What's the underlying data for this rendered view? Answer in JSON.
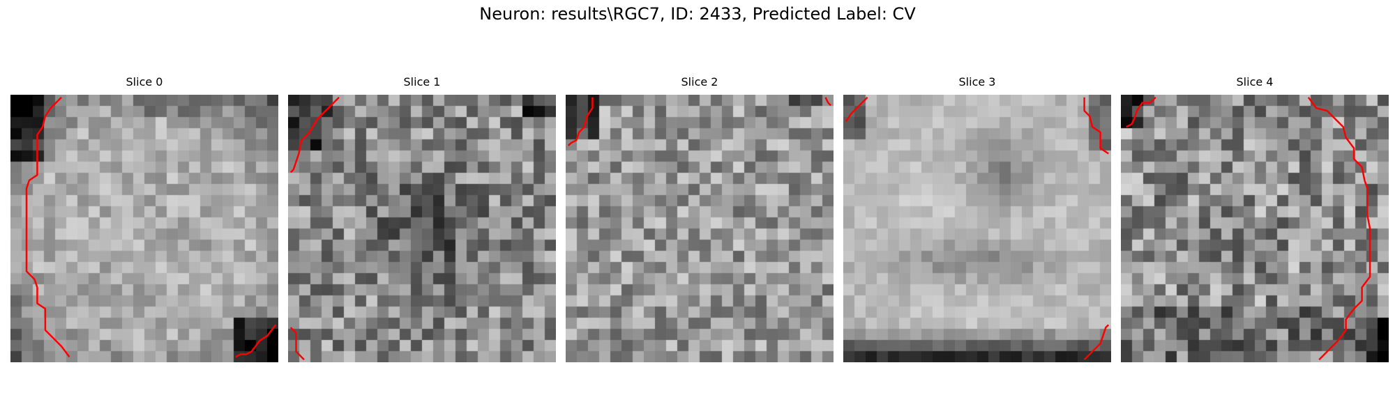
{
  "figure": {
    "suptitle": "Neuron: results\\RGC7, ID: 2433, Predicted Label: CV"
  },
  "colors": {
    "contour": "#ff0000",
    "background": "#ffffff",
    "text": "#000000"
  },
  "panels": [
    {
      "title": "Slice 0",
      "seed": 11,
      "pattern": "cell_bright",
      "contours": [
        [
          [
            0.19,
            0.01
          ],
          [
            0.15,
            0.05
          ],
          [
            0.13,
            0.08
          ],
          [
            0.12,
            0.12
          ],
          [
            0.1,
            0.15
          ],
          [
            0.1,
            0.22
          ],
          [
            0.1,
            0.3
          ],
          [
            0.07,
            0.32
          ],
          [
            0.06,
            0.35
          ],
          [
            0.06,
            0.5
          ],
          [
            0.06,
            0.66
          ],
          [
            0.09,
            0.69
          ],
          [
            0.1,
            0.72
          ],
          [
            0.1,
            0.78
          ],
          [
            0.13,
            0.8
          ],
          [
            0.13,
            0.88
          ],
          [
            0.16,
            0.91
          ],
          [
            0.19,
            0.94
          ],
          [
            0.22,
            0.98
          ]
        ],
        [
          [
            0.84,
            0.98
          ],
          [
            0.86,
            0.97
          ],
          [
            0.88,
            0.97
          ],
          [
            0.9,
            0.96
          ],
          [
            0.93,
            0.92
          ],
          [
            0.96,
            0.9
          ],
          [
            0.99,
            0.86
          ]
        ]
      ]
    },
    {
      "title": "Slice 1",
      "seed": 23,
      "pattern": "noisy_dark_center",
      "contours": [
        [
          [
            0.19,
            0.01
          ],
          [
            0.15,
            0.05
          ],
          [
            0.11,
            0.09
          ],
          [
            0.08,
            0.14
          ],
          [
            0.05,
            0.17
          ],
          [
            0.04,
            0.22
          ],
          [
            0.02,
            0.28
          ],
          [
            0.01,
            0.29
          ]
        ],
        [
          [
            0.01,
            0.87
          ],
          [
            0.03,
            0.89
          ],
          [
            0.03,
            0.96
          ],
          [
            0.06,
            0.99
          ]
        ]
      ]
    },
    {
      "title": "Slice 2",
      "seed": 37,
      "pattern": "noisy_flat",
      "contours": [
        [
          [
            0.1,
            0.01
          ],
          [
            0.1,
            0.05
          ],
          [
            0.08,
            0.08
          ],
          [
            0.07,
            0.12
          ],
          [
            0.05,
            0.14
          ],
          [
            0.04,
            0.17
          ],
          [
            0.02,
            0.18
          ],
          [
            0.01,
            0.19
          ]
        ],
        [
          [
            0.97,
            0.01
          ],
          [
            0.98,
            0.03
          ],
          [
            0.99,
            0.04
          ]
        ]
      ]
    },
    {
      "title": "Slice 3",
      "seed": 41,
      "pattern": "bright_blob_dark_bottom",
      "contours": [
        [
          [
            0.09,
            0.01
          ],
          [
            0.06,
            0.04
          ],
          [
            0.03,
            0.07
          ],
          [
            0.01,
            0.1
          ]
        ],
        [
          [
            0.9,
            0.01
          ],
          [
            0.9,
            0.06
          ],
          [
            0.92,
            0.08
          ],
          [
            0.93,
            0.12
          ],
          [
            0.96,
            0.14
          ],
          [
            0.96,
            0.2
          ],
          [
            0.99,
            0.22
          ]
        ],
        [
          [
            0.9,
            0.99
          ],
          [
            0.93,
            0.96
          ],
          [
            0.96,
            0.93
          ],
          [
            0.97,
            0.9
          ],
          [
            0.98,
            0.87
          ],
          [
            0.99,
            0.86
          ]
        ]
      ]
    },
    {
      "title": "Slice 4",
      "seed": 53,
      "pattern": "noisy_dark_corners",
      "contours": [
        [
          [
            0.13,
            0.01
          ],
          [
            0.11,
            0.03
          ],
          [
            0.08,
            0.03
          ],
          [
            0.06,
            0.06
          ],
          [
            0.05,
            0.09
          ],
          [
            0.04,
            0.11
          ],
          [
            0.02,
            0.12
          ]
        ],
        [
          [
            0.7,
            0.01
          ],
          [
            0.73,
            0.05
          ],
          [
            0.77,
            0.06
          ],
          [
            0.8,
            0.09
          ],
          [
            0.83,
            0.12
          ],
          [
            0.84,
            0.16
          ],
          [
            0.87,
            0.2
          ],
          [
            0.87,
            0.24
          ],
          [
            0.9,
            0.27
          ],
          [
            0.91,
            0.32
          ],
          [
            0.92,
            0.35
          ],
          [
            0.92,
            0.45
          ],
          [
            0.93,
            0.5
          ],
          [
            0.93,
            0.6
          ],
          [
            0.93,
            0.68
          ],
          [
            0.9,
            0.72
          ],
          [
            0.9,
            0.77
          ],
          [
            0.87,
            0.8
          ],
          [
            0.84,
            0.84
          ],
          [
            0.84,
            0.88
          ],
          [
            0.81,
            0.92
          ],
          [
            0.77,
            0.96
          ],
          [
            0.74,
            0.99
          ]
        ]
      ]
    }
  ]
}
